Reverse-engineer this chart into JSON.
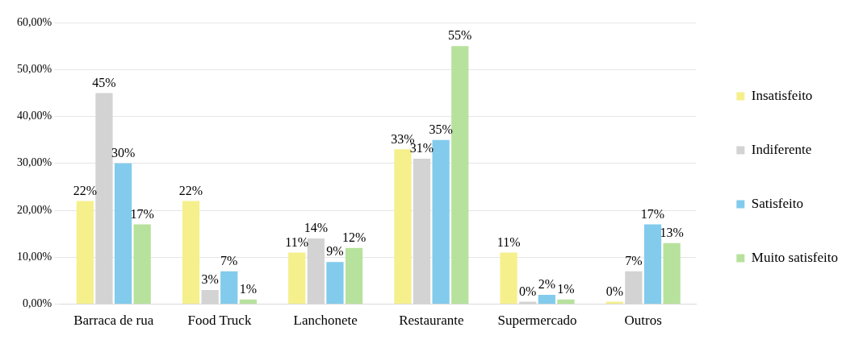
{
  "chart_data": {
    "type": "bar",
    "categories": [
      "Barraca de rua",
      "Food Truck",
      "Lanchonete",
      "Restaurante",
      "Supermercado",
      "Outros"
    ],
    "series": [
      {
        "name": "Insatisfeito",
        "color": "#f5f08c",
        "values": [
          22,
          22,
          11,
          33,
          11,
          0
        ],
        "value_labels": [
          "22%",
          "22%",
          "11%",
          "33%",
          "11%",
          "0%"
        ]
      },
      {
        "name": "Indiferente",
        "color": "#d3d3d3",
        "values": [
          45,
          3,
          14,
          31,
          0,
          7
        ],
        "value_labels": [
          "45%",
          "3%",
          "14%",
          "31%",
          "0%",
          "7%"
        ]
      },
      {
        "name": "Satisfeito",
        "color": "#82cbec",
        "values": [
          30,
          7,
          9,
          35,
          2,
          17
        ],
        "value_labels": [
          "30%",
          "7%",
          "9%",
          "35%",
          "2%",
          "17%"
        ]
      },
      {
        "name": "Muito satisfeito",
        "color": "#b7e29d",
        "values": [
          17,
          1,
          12,
          55,
          1,
          13
        ],
        "value_labels": [
          "17%",
          "1%",
          "12%",
          "55%",
          "1%",
          "13%"
        ]
      }
    ],
    "ylim": [
      0,
      60
    ],
    "yticks": [
      {
        "value": 0,
        "label": "0,00%"
      },
      {
        "value": 10,
        "label": "10,00%"
      },
      {
        "value": 20,
        "label": "20,00%"
      },
      {
        "value": 30,
        "label": "30,00%"
      },
      {
        "value": 40,
        "label": "40,00%"
      },
      {
        "value": 50,
        "label": "50,00%"
      },
      {
        "value": 60,
        "label": "60,00%"
      }
    ],
    "grid": "y",
    "legend": "right"
  }
}
